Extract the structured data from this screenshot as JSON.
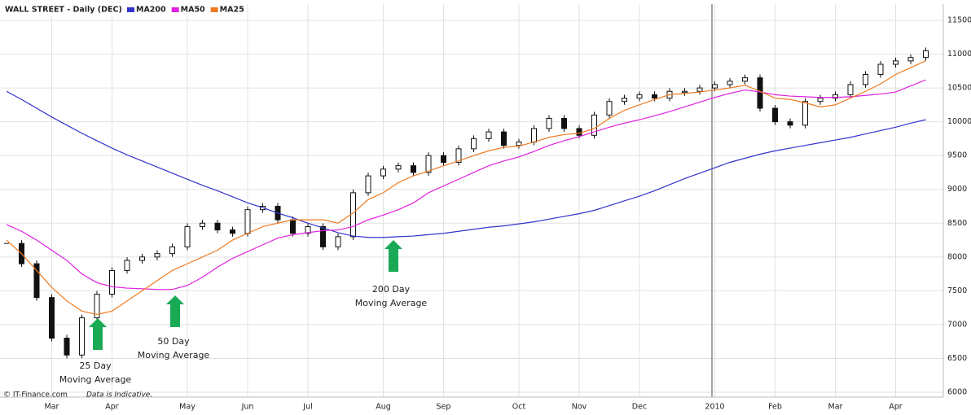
{
  "chart_data": {
    "type": "stock",
    "title": "WALL STREET - Daily (DEC)",
    "categories": [
      null,
      null,
      null,
      "Mar",
      null,
      null,
      null,
      "Apr",
      null,
      null,
      null,
      null,
      "May",
      null,
      null,
      null,
      "Jun",
      null,
      null,
      null,
      "Jul",
      null,
      null,
      null,
      null,
      "Aug",
      null,
      null,
      null,
      "Sep",
      null,
      null,
      null,
      null,
      "Oct",
      null,
      null,
      null,
      "Nov",
      null,
      null,
      null,
      "Dec",
      null,
      null,
      null,
      null,
      "2010",
      null,
      null,
      null,
      "Feb",
      null,
      null,
      null,
      "Mar",
      null,
      null,
      null,
      "Apr",
      null,
      null
    ],
    "price": {
      "color": "#111111",
      "values": [
        8200,
        7900,
        7400,
        6800,
        6550,
        7100,
        7450,
        7800,
        7950,
        8000,
        8050,
        8150,
        8450,
        8500,
        8400,
        8350,
        8700,
        8750,
        8550,
        8350,
        8450,
        8150,
        8300,
        8950,
        9200,
        9300,
        9350,
        9250,
        9500,
        9400,
        9600,
        9750,
        9850,
        9650,
        9700,
        9900,
        10050,
        9900,
        9800,
        10100,
        10300,
        10350,
        10400,
        10350,
        10450,
        10450,
        10500,
        10550,
        10600,
        10650,
        10200,
        10000,
        9950,
        10300,
        10350,
        10400,
        10550,
        10700,
        10850,
        10900,
        10950,
        11050
      ]
    },
    "series": [
      {
        "name": "MA200",
        "color": "#3333cc",
        "values": [
          10450,
          10330,
          10200,
          10070,
          9950,
          9830,
          9720,
          9610,
          9510,
          9420,
          9330,
          9240,
          9150,
          9060,
          8980,
          8890,
          8800,
          8730,
          8650,
          8580,
          8500,
          8430,
          8360,
          8310,
          8290,
          8290,
          8300,
          8310,
          8330,
          8350,
          8380,
          8410,
          8440,
          8460,
          8490,
          8520,
          8560,
          8600,
          8640,
          8690,
          8760,
          8830,
          8900,
          8980,
          9070,
          9160,
          9240,
          9320,
          9400,
          9460,
          9520,
          9570,
          9610,
          9650,
          9690,
          9730,
          9770,
          9820,
          9870,
          9920,
          9980,
          10030
        ]
      },
      {
        "name": "MA50",
        "color": "#e020e0",
        "values": [
          8480,
          8380,
          8250,
          8100,
          7950,
          7750,
          7620,
          7560,
          7540,
          7530,
          7520,
          7520,
          7580,
          7700,
          7850,
          7980,
          8080,
          8180,
          8280,
          8330,
          8360,
          8390,
          8400,
          8450,
          8550,
          8620,
          8700,
          8800,
          8950,
          9050,
          9150,
          9250,
          9350,
          9420,
          9480,
          9560,
          9650,
          9720,
          9780,
          9850,
          9920,
          9980,
          10030,
          10090,
          10150,
          10220,
          10290,
          10360,
          10420,
          10470,
          10440,
          10400,
          10380,
          10370,
          10360,
          10360,
          10370,
          10390,
          10410,
          10440,
          10530,
          10620
        ]
      },
      {
        "name": "MA25",
        "color": "#f07a20",
        "values": [
          8250,
          8050,
          7800,
          7550,
          7350,
          7200,
          7150,
          7200,
          7350,
          7500,
          7650,
          7800,
          7900,
          8000,
          8100,
          8250,
          8350,
          8450,
          8500,
          8550,
          8550,
          8550,
          8500,
          8650,
          8850,
          8950,
          9100,
          9200,
          9270,
          9350,
          9420,
          9500,
          9570,
          9620,
          9640,
          9700,
          9770,
          9810,
          9830,
          9900,
          10050,
          10170,
          10250,
          10330,
          10400,
          10420,
          10440,
          10470,
          10500,
          10540,
          10450,
          10350,
          10330,
          10280,
          10220,
          10250,
          10350,
          10450,
          10560,
          10700,
          10800,
          10900
        ]
      }
    ],
    "ylim": [
      6000,
      11500
    ],
    "yticks": [
      6000,
      6500,
      7000,
      7500,
      8000,
      8500,
      9000,
      9500,
      10000,
      10500,
      11000,
      11500
    ],
    "grid": true,
    "annotations": [
      [
        "25 Day",
        "Moving Average"
      ],
      [
        "50 Day",
        "Moving Average"
      ],
      [
        "200 Day",
        "Moving Average"
      ]
    ],
    "footer": [
      "© IT-Finance.com",
      "Data is Indicative."
    ]
  }
}
